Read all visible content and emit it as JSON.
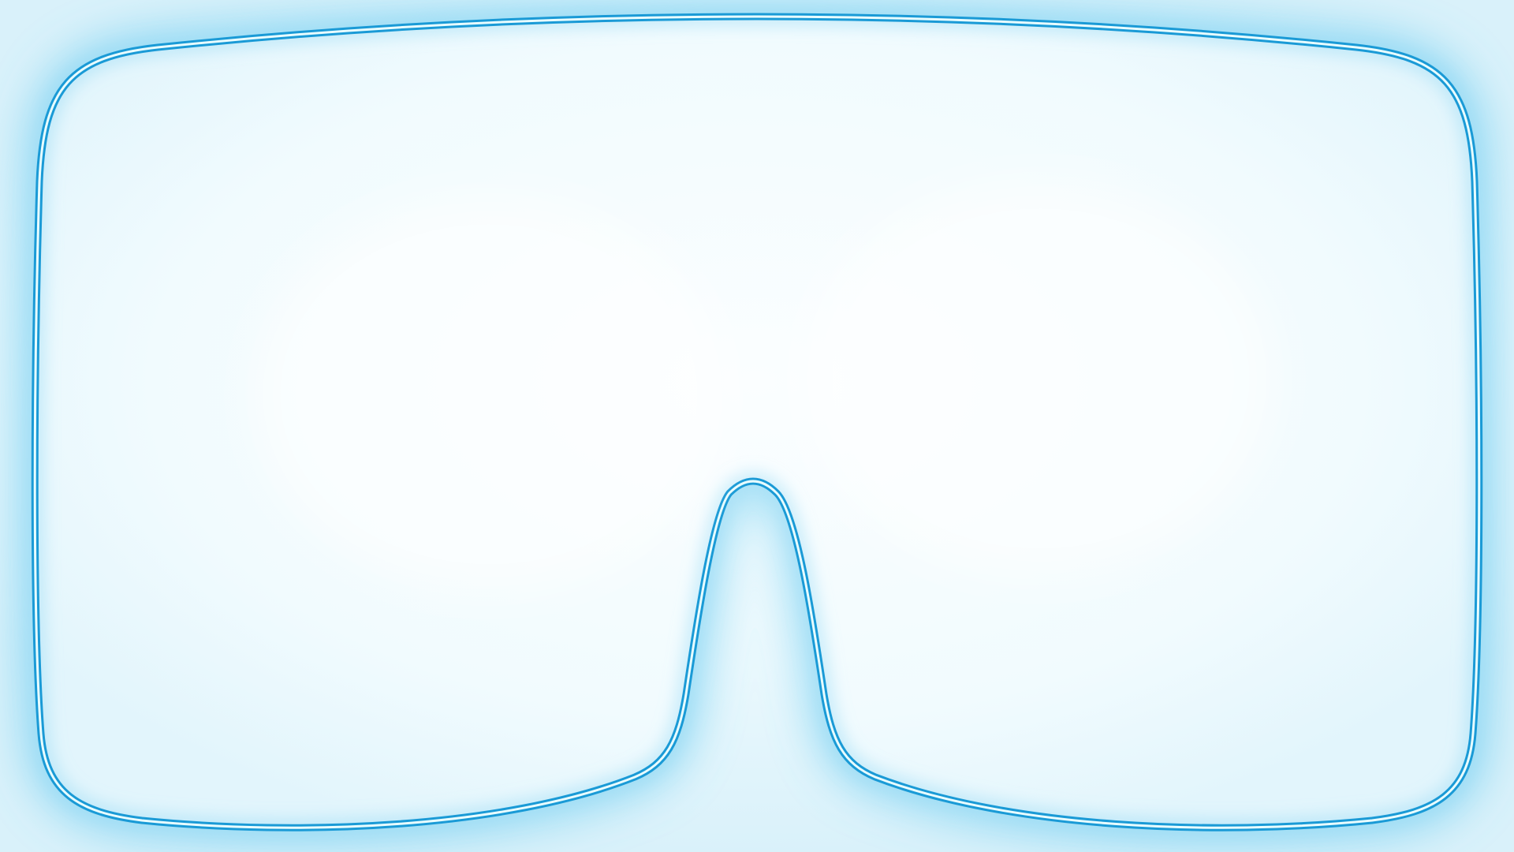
{
  "scene": {
    "overlay": "vr-headset-view-frame",
    "frame_icon": "vr-goggles-outline-icon"
  },
  "colors": {
    "background": "#e4f6fc",
    "inner_fill": "#f3fcff",
    "glow": "#5cc7ef",
    "outline_dark": "#1a9ad6",
    "outline_core": "#e8fdff"
  }
}
